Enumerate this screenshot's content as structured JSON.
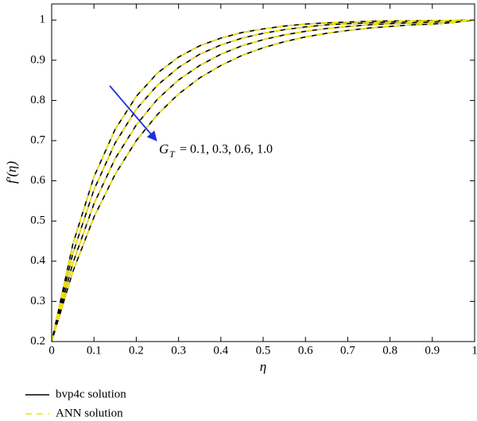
{
  "chart_data": {
    "type": "line",
    "x_label": "η",
    "y_label": "f′(η)",
    "annotation_symbol": "G",
    "annotation_subscript": "T",
    "annotation_text": "= 0.1, 0.3, 0.6, 1.0",
    "x": [
      0,
      0.05,
      0.1,
      0.15,
      0.2,
      0.25,
      0.3,
      0.35,
      0.4,
      0.45,
      0.5,
      0.55,
      0.6,
      0.65,
      0.7,
      0.75,
      0.8,
      0.85,
      0.9,
      0.95,
      1
    ],
    "xlim": [
      0,
      1
    ],
    "xticks": [
      0,
      0.1,
      0.2,
      0.3,
      0.4,
      0.5,
      0.6,
      0.7,
      0.8,
      0.9,
      1
    ],
    "ylim": [
      0.2,
      1.04
    ],
    "yticks": [
      0.2,
      0.3,
      0.4,
      0.5,
      0.6,
      0.7,
      0.8,
      0.9,
      1
    ],
    "series": [
      {
        "name": "bvp4c solution",
        "color": "#000000",
        "dashed": false,
        "values": [
          [
            0.2,
            0.442,
            0.61,
            0.728,
            0.81,
            0.868,
            0.908,
            0.936,
            0.955,
            0.969,
            0.978,
            0.985,
            0.99,
            0.993,
            0.995,
            0.997,
            0.998,
            0.998,
            0.999,
            0.999,
            1
          ],
          [
            0.2,
            0.419,
            0.578,
            0.694,
            0.778,
            0.838,
            0.882,
            0.915,
            0.938,
            0.955,
            0.967,
            0.976,
            0.983,
            0.988,
            0.991,
            0.993,
            0.995,
            0.997,
            0.998,
            0.999,
            1
          ],
          [
            0.2,
            0.395,
            0.543,
            0.655,
            0.739,
            0.803,
            0.851,
            0.887,
            0.915,
            0.936,
            0.951,
            0.963,
            0.972,
            0.979,
            0.984,
            0.988,
            0.991,
            0.993,
            0.995,
            0.997,
            1
          ],
          [
            0.2,
            0.374,
            0.51,
            0.616,
            0.7,
            0.765,
            0.816,
            0.856,
            0.887,
            0.912,
            0.931,
            0.946,
            0.958,
            0.967,
            0.974,
            0.98,
            0.984,
            0.988,
            0.99,
            0.994,
            1
          ]
        ]
      },
      {
        "name": "ANN solution",
        "color": "#f2e600",
        "dashed": true,
        "values": [
          [
            0.2,
            0.442,
            0.61,
            0.728,
            0.81,
            0.868,
            0.908,
            0.936,
            0.955,
            0.969,
            0.978,
            0.985,
            0.99,
            0.993,
            0.995,
            0.997,
            0.998,
            0.998,
            0.999,
            0.999,
            1
          ],
          [
            0.2,
            0.419,
            0.578,
            0.694,
            0.778,
            0.838,
            0.882,
            0.915,
            0.938,
            0.955,
            0.967,
            0.976,
            0.983,
            0.988,
            0.991,
            0.993,
            0.995,
            0.997,
            0.998,
            0.999,
            1
          ],
          [
            0.2,
            0.395,
            0.543,
            0.655,
            0.739,
            0.803,
            0.851,
            0.887,
            0.915,
            0.936,
            0.951,
            0.963,
            0.972,
            0.979,
            0.984,
            0.988,
            0.991,
            0.993,
            0.995,
            0.997,
            1
          ],
          [
            0.2,
            0.374,
            0.51,
            0.616,
            0.7,
            0.765,
            0.816,
            0.856,
            0.887,
            0.912,
            0.931,
            0.946,
            0.958,
            0.967,
            0.974,
            0.98,
            0.984,
            0.988,
            0.99,
            0.994,
            1
          ]
        ]
      }
    ]
  }
}
